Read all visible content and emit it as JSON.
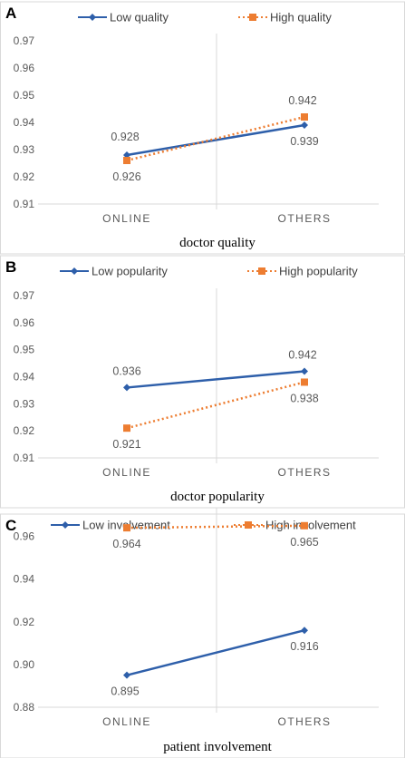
{
  "chart_data": [
    {
      "type": "line",
      "panel_label": "A",
      "caption": "doctor quality",
      "categories": [
        "ONLINE",
        "OTHERS"
      ],
      "series": [
        {
          "name": "Low quality",
          "values": [
            0.928,
            0.939
          ],
          "labels": [
            "0.928",
            "0.939"
          ],
          "color": "#2e5faa",
          "style": "solid",
          "marker": "diamond"
        },
        {
          "name": "High quality",
          "values": [
            0.926,
            0.942
          ],
          "labels": [
            "0.926",
            "0.942"
          ],
          "color": "#ed7d31",
          "style": "dotted",
          "marker": "square"
        }
      ],
      "ylim": [
        0.91,
        0.97
      ],
      "yticks": [
        0.91,
        0.92,
        0.93,
        0.94,
        0.95,
        0.96,
        0.97
      ],
      "ytick_labels": [
        "0.91",
        "0.92",
        "0.93",
        "0.94",
        "0.95",
        "0.96",
        "0.97"
      ],
      "grid": false,
      "legend": "top"
    },
    {
      "type": "line",
      "panel_label": "B",
      "caption": "doctor popularity",
      "categories": [
        "ONLINE",
        "OTHERS"
      ],
      "series": [
        {
          "name": "Low popularity",
          "values": [
            0.936,
            0.942
          ],
          "labels": [
            "0.936",
            "0.942"
          ],
          "color": "#2e5faa",
          "style": "solid",
          "marker": "diamond"
        },
        {
          "name": "High popularity",
          "values": [
            0.921,
            0.938
          ],
          "labels": [
            "0.921",
            "0.938"
          ],
          "color": "#ed7d31",
          "style": "dotted",
          "marker": "square"
        }
      ],
      "ylim": [
        0.91,
        0.97
      ],
      "yticks": [
        0.91,
        0.92,
        0.93,
        0.94,
        0.95,
        0.96,
        0.97
      ],
      "ytick_labels": [
        "0.91",
        "0.92",
        "0.93",
        "0.94",
        "0.95",
        "0.96",
        "0.97"
      ],
      "grid": false,
      "legend": "top"
    },
    {
      "type": "line",
      "panel_label": "C",
      "caption": "patient involvement",
      "categories": [
        "ONLINE",
        "OTHERS"
      ],
      "series": [
        {
          "name": "Low involvement",
          "values": [
            0.895,
            0.916
          ],
          "labels": [
            "0.895",
            "0.916"
          ],
          "color": "#2e5faa",
          "style": "solid",
          "marker": "diamond"
        },
        {
          "name": "High involvement",
          "values": [
            0.964,
            0.965
          ],
          "labels": [
            "0.964",
            "0.965"
          ],
          "color": "#ed7d31",
          "style": "dotted",
          "marker": "square"
        }
      ],
      "ylim": [
        0.88,
        0.97
      ],
      "yticks": [
        0.88,
        0.9,
        0.92,
        0.94,
        0.96
      ],
      "ytick_labels": [
        "0.88",
        "0.90",
        "0.92",
        "0.94",
        "0.96"
      ],
      "grid": false,
      "legend": "top"
    }
  ]
}
